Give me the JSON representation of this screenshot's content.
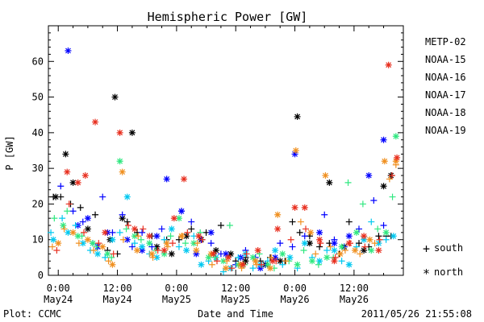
{
  "chart_data": {
    "type": "scatter",
    "title": "Hemispheric Power [GW]",
    "ylabel": "P [GW]",
    "xlabel": "Date and Time",
    "ylim": [
      0,
      70
    ],
    "xlim_hours": [
      -2,
      70
    ],
    "x_unit": "hours from 2011-05-24 00:00",
    "yticks": [
      0,
      10,
      20,
      30,
      40,
      50,
      60
    ],
    "xticks": [
      {
        "h": 0,
        "time": "0:00",
        "date": "May24"
      },
      {
        "h": 12,
        "time": "12:00",
        "date": "May24"
      },
      {
        "h": 24,
        "time": "0:00",
        "date": "May25"
      },
      {
        "h": 36,
        "time": "12:00",
        "date": "May25"
      },
      {
        "h": 48,
        "time": "0:00",
        "date": "May26"
      },
      {
        "h": 60,
        "time": "12:00",
        "date": "May26"
      }
    ],
    "marker_legend": {
      "south_symbol": "+",
      "south_label": "south",
      "north_symbol": "*",
      "north_label": "north"
    },
    "series": [
      {
        "name": "METP-02",
        "color": "#000000",
        "south": [
          [
            -1.0,
            22
          ],
          [
            0.5,
            22
          ],
          [
            2.5,
            20
          ],
          [
            4.5,
            19
          ],
          [
            7.5,
            17
          ],
          [
            10,
            7
          ],
          [
            12,
            6
          ],
          [
            14,
            15
          ],
          [
            16,
            12
          ],
          [
            19,
            11
          ],
          [
            22,
            10
          ],
          [
            24.5,
            10
          ],
          [
            27,
            13
          ],
          [
            30,
            12
          ],
          [
            33,
            14
          ],
          [
            36,
            4
          ],
          [
            38,
            5
          ],
          [
            41,
            4
          ],
          [
            43,
            5
          ],
          [
            46,
            4
          ],
          [
            47.5,
            15
          ],
          [
            49,
            12
          ],
          [
            51,
            11
          ],
          [
            53,
            8
          ],
          [
            55,
            9
          ],
          [
            57,
            6
          ],
          [
            59,
            15
          ],
          [
            61,
            9
          ],
          [
            63,
            8
          ],
          [
            65,
            11
          ],
          [
            66.5,
            11
          ],
          [
            67.5,
            11
          ]
        ],
        "north": [
          [
            -0.5,
            22
          ],
          [
            1.5,
            34
          ],
          [
            3,
            26
          ],
          [
            6,
            13
          ],
          [
            10.5,
            10
          ],
          [
            11.5,
            50
          ],
          [
            13,
            16
          ],
          [
            15,
            40
          ],
          [
            20,
            8
          ],
          [
            23,
            6
          ],
          [
            26,
            11
          ],
          [
            29,
            10
          ],
          [
            32,
            7
          ],
          [
            35,
            6
          ],
          [
            38,
            4
          ],
          [
            42,
            3
          ],
          [
            45,
            4
          ],
          [
            48.5,
            44.5
          ],
          [
            51,
            9
          ],
          [
            55,
            26
          ],
          [
            58,
            8
          ],
          [
            62,
            7
          ],
          [
            66,
            25
          ],
          [
            67.5,
            28
          ]
        ]
      },
      {
        "name": "NOAA-15",
        "color": "#0000ff",
        "south": [
          [
            0.5,
            25
          ],
          [
            3,
            18
          ],
          [
            5,
            15
          ],
          [
            7,
            9
          ],
          [
            9,
            22
          ],
          [
            11,
            12
          ],
          [
            13,
            17
          ],
          [
            15,
            8
          ],
          [
            17,
            12
          ],
          [
            19,
            8
          ],
          [
            21,
            13
          ],
          [
            25,
            18
          ],
          [
            27,
            15
          ],
          [
            29,
            10
          ],
          [
            31,
            9
          ],
          [
            33,
            6
          ],
          [
            36,
            3
          ],
          [
            38,
            7
          ],
          [
            40,
            5
          ],
          [
            42,
            3
          ],
          [
            45,
            9
          ],
          [
            47.5,
            8
          ],
          [
            50,
            11
          ],
          [
            54,
            17
          ],
          [
            56,
            10
          ],
          [
            58,
            8
          ],
          [
            61,
            13
          ],
          [
            64,
            21
          ],
          [
            66,
            14
          ]
        ],
        "north": [
          [
            2,
            63
          ],
          [
            4,
            14
          ],
          [
            6,
            16
          ],
          [
            8,
            8
          ],
          [
            10,
            12
          ],
          [
            14,
            10
          ],
          [
            17,
            7
          ],
          [
            20,
            11
          ],
          [
            22,
            27
          ],
          [
            25,
            18
          ],
          [
            28,
            6
          ],
          [
            31,
            12
          ],
          [
            34,
            6
          ],
          [
            37,
            5
          ],
          [
            41,
            2
          ],
          [
            44,
            5
          ],
          [
            48,
            34
          ],
          [
            53,
            12
          ],
          [
            56,
            9
          ],
          [
            59,
            11
          ],
          [
            63,
            28
          ],
          [
            66,
            38
          ]
        ]
      },
      {
        "name": "NOAA-16",
        "color": "#00c8f0",
        "south": [
          [
            -1.5,
            12
          ],
          [
            0.8,
            16
          ],
          [
            3.5,
            14
          ],
          [
            6.5,
            7
          ],
          [
            9.5,
            5
          ],
          [
            12.5,
            12
          ],
          [
            15.5,
            9
          ],
          [
            18.5,
            6
          ],
          [
            21.5,
            10
          ],
          [
            24.5,
            8
          ],
          [
            27.5,
            11
          ],
          [
            30.5,
            4
          ],
          [
            33.5,
            1
          ],
          [
            36.5,
            5
          ],
          [
            39.5,
            2
          ],
          [
            42.5,
            4
          ],
          [
            45.5,
            3
          ],
          [
            48.5,
            2
          ],
          [
            51.5,
            5
          ],
          [
            54.5,
            7
          ],
          [
            57.5,
            4
          ],
          [
            60.5,
            8
          ],
          [
            63.5,
            15
          ],
          [
            66.5,
            10
          ]
        ],
        "north": [
          [
            -1,
            10
          ],
          [
            2,
            12
          ],
          [
            5,
            9
          ],
          [
            8,
            6
          ],
          [
            11,
            10
          ],
          [
            14,
            22
          ],
          [
            17,
            8
          ],
          [
            20,
            5
          ],
          [
            23,
            13
          ],
          [
            26,
            7
          ],
          [
            29,
            3
          ],
          [
            32,
            5
          ],
          [
            35,
            2
          ],
          [
            38,
            6
          ],
          [
            41,
            3
          ],
          [
            44,
            7
          ],
          [
            47,
            5
          ],
          [
            50,
            9
          ],
          [
            53,
            4
          ],
          [
            56,
            7
          ],
          [
            59,
            3
          ],
          [
            62,
            10
          ],
          [
            65,
            9
          ],
          [
            68,
            11
          ]
        ]
      },
      {
        "name": "NOAA-17",
        "color": "#30e880",
        "south": [
          [
            -0.8,
            16
          ],
          [
            1.8,
            18
          ],
          [
            4.8,
            11
          ],
          [
            7.8,
            8
          ],
          [
            10.8,
            5
          ],
          [
            13.8,
            13
          ],
          [
            16.8,
            10
          ],
          [
            19.8,
            7
          ],
          [
            22.8,
            11
          ],
          [
            25.8,
            9
          ],
          [
            28.8,
            12
          ],
          [
            31.8,
            5
          ],
          [
            34.8,
            14
          ],
          [
            37.8,
            3
          ],
          [
            40.8,
            6
          ],
          [
            43.8,
            2
          ],
          [
            46.8,
            4
          ],
          [
            49.8,
            7
          ],
          [
            52.8,
            3
          ],
          [
            55.8,
            5
          ],
          [
            58.8,
            26
          ],
          [
            61.8,
            20
          ],
          [
            64.8,
            13
          ],
          [
            67.8,
            22
          ]
        ],
        "north": [
          [
            1,
            14
          ],
          [
            4,
            11
          ],
          [
            7,
            9
          ],
          [
            10,
            6
          ],
          [
            12.5,
            32
          ],
          [
            15.5,
            11
          ],
          [
            18.5,
            9
          ],
          [
            21.5,
            6
          ],
          [
            24.5,
            16
          ],
          [
            27.5,
            9
          ],
          [
            30.5,
            5
          ],
          [
            33.5,
            4
          ],
          [
            36.5,
            3
          ],
          [
            39.5,
            5
          ],
          [
            42.5,
            3
          ],
          [
            45.5,
            6
          ],
          [
            48.5,
            3
          ],
          [
            51.5,
            4
          ],
          [
            54.5,
            5
          ],
          [
            57.5,
            8
          ],
          [
            60.5,
            12
          ],
          [
            63.5,
            7
          ],
          [
            66.5,
            12
          ],
          [
            68.5,
            39
          ]
        ]
      },
      {
        "name": "NOAA-18",
        "color": "#f09020",
        "south": [
          [
            -1.2,
            8
          ],
          [
            1.2,
            13
          ],
          [
            4.2,
            9
          ],
          [
            7.2,
            7
          ],
          [
            10.2,
            4
          ],
          [
            13.2,
            10
          ],
          [
            16.2,
            11
          ],
          [
            19.2,
            5
          ],
          [
            22.2,
            8
          ],
          [
            25.2,
            11
          ],
          [
            28.2,
            9
          ],
          [
            31.2,
            3
          ],
          [
            34.2,
            4
          ],
          [
            37.2,
            2
          ],
          [
            40.2,
            3
          ],
          [
            43.2,
            5
          ],
          [
            46.2,
            4
          ],
          [
            49.2,
            15
          ],
          [
            52.2,
            6
          ],
          [
            55.2,
            8
          ],
          [
            58.2,
            7
          ],
          [
            61.2,
            6
          ],
          [
            64.2,
            9
          ],
          [
            67.2,
            27
          ],
          [
            68.5,
            31
          ]
        ],
        "north": [
          [
            0,
            9
          ],
          [
            3,
            12
          ],
          [
            6,
            10
          ],
          [
            9,
            8
          ],
          [
            11,
            3
          ],
          [
            13,
            29
          ],
          [
            16,
            7
          ],
          [
            19,
            6
          ],
          [
            22,
            9
          ],
          [
            25,
            11
          ],
          [
            28,
            7
          ],
          [
            31,
            6
          ],
          [
            34,
            2
          ],
          [
            37,
            3
          ],
          [
            40,
            4
          ],
          [
            43,
            2
          ],
          [
            44.5,
            17
          ],
          [
            48.2,
            35
          ],
          [
            51.2,
            12
          ],
          [
            54.2,
            28
          ],
          [
            57.2,
            6
          ],
          [
            60.2,
            7
          ],
          [
            63.2,
            10
          ],
          [
            66.2,
            32
          ],
          [
            68.5,
            32
          ]
        ]
      },
      {
        "name": "NOAA-19",
        "color": "#e83020",
        "south": [
          [
            -0.3,
            7
          ],
          [
            2.2,
            20
          ],
          [
            5.2,
            12
          ],
          [
            8.2,
            9
          ],
          [
            11.2,
            6
          ],
          [
            14.2,
            14
          ],
          [
            17.2,
            13
          ],
          [
            20.2,
            7
          ],
          [
            23.2,
            9
          ],
          [
            26.2,
            12
          ],
          [
            29.2,
            10
          ],
          [
            32.2,
            4
          ],
          [
            35.2,
            2
          ],
          [
            38.2,
            6
          ],
          [
            41.2,
            3
          ],
          [
            44.2,
            4
          ],
          [
            47.2,
            10
          ],
          [
            50.2,
            13
          ],
          [
            53.2,
            9
          ],
          [
            56.2,
            5
          ],
          [
            59.2,
            9
          ],
          [
            62.2,
            8
          ],
          [
            65.2,
            10
          ],
          [
            67.7,
            28
          ]
        ],
        "north": [
          [
            1.8,
            29
          ],
          [
            4,
            26
          ],
          [
            5.5,
            28
          ],
          [
            7.5,
            43
          ],
          [
            9.5,
            12
          ],
          [
            12.5,
            40
          ],
          [
            15.5,
            13
          ],
          [
            18.5,
            11
          ],
          [
            21.5,
            7
          ],
          [
            23.5,
            16
          ],
          [
            25.5,
            27
          ],
          [
            28.5,
            11
          ],
          [
            31.5,
            6
          ],
          [
            34.5,
            5
          ],
          [
            37.5,
            3
          ],
          [
            40.5,
            7
          ],
          [
            43.5,
            4
          ],
          [
            44.5,
            13
          ],
          [
            48,
            19
          ],
          [
            50,
            19
          ],
          [
            53,
            10
          ],
          [
            56,
            4
          ],
          [
            59,
            9
          ],
          [
            62,
            11
          ],
          [
            65,
            7
          ],
          [
            67,
            59
          ],
          [
            68.7,
            33
          ]
        ]
      }
    ]
  },
  "footer": {
    "plot_credit": "Plot: CCMC",
    "timestamp": "2011/05/26 21:55:08"
  }
}
